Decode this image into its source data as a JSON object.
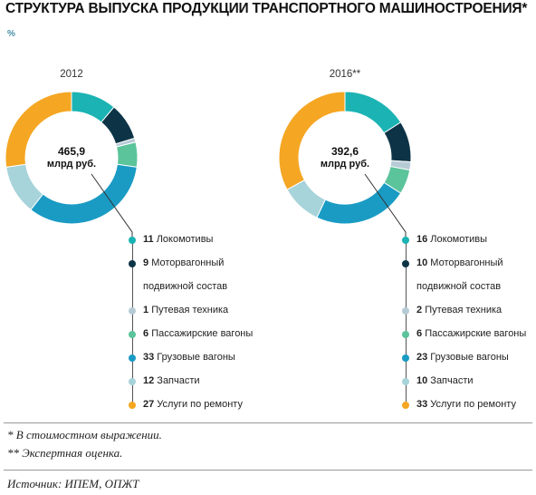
{
  "title": "СТРУКТУРА ВЫПУСКА ПРОДУКЦИИ ТРАНСПОРТНОГО МАШИНОСТРОЕНИЯ*",
  "unit": "%",
  "footnotes": [
    "* В стоимостном выражении.",
    "** Экспертная оценка."
  ],
  "source": "Источник: ИПЕМ, ОПЖТ",
  "colors": {
    "locomotives": "#1bb3b3",
    "motor_cars": "#0d3446",
    "track": "#b7cbd6",
    "passenger": "#5bc49a",
    "freight": "#1a9bc4",
    "parts": "#a7d3da",
    "repair": "#f5a623"
  },
  "chart_data": [
    {
      "type": "pie",
      "title": "2012",
      "center_value": "465,9",
      "center_unit": "млрд руб.",
      "slices": [
        {
          "label": "Локомотивы",
          "value": 11,
          "color": "#1bb3b3"
        },
        {
          "label": "Моторвагонный подвижной состав",
          "label_lines": [
            "Моторвагонный",
            "подвижной состав"
          ],
          "value": 9,
          "color": "#0d3446"
        },
        {
          "label": "Путевая техника",
          "value": 1,
          "color": "#b7cbd6"
        },
        {
          "label": "Пассажирские вагоны",
          "value": 6,
          "color": "#5bc49a"
        },
        {
          "label": "Грузовые вагоны",
          "value": 33,
          "color": "#1a9bc4"
        },
        {
          "label": "Запчасти",
          "value": 12,
          "color": "#a7d3da"
        },
        {
          "label": "Услуги по ремонту",
          "value": 27,
          "color": "#f5a623"
        }
      ]
    },
    {
      "type": "pie",
      "title": "2016**",
      "center_value": "392,6",
      "center_unit": "млрд руб.",
      "slices": [
        {
          "label": "Локомотивы",
          "value": 16,
          "color": "#1bb3b3"
        },
        {
          "label": "Моторвагонный подвижной состав",
          "label_lines": [
            "Моторвагонный",
            "подвижной состав"
          ],
          "value": 10,
          "color": "#0d3446"
        },
        {
          "label": "Путевая техника",
          "value": 2,
          "color": "#b7cbd6"
        },
        {
          "label": "Пассажирские вагоны",
          "value": 6,
          "color": "#5bc49a"
        },
        {
          "label": "Грузовые вагоны",
          "value": 23,
          "color": "#1a9bc4"
        },
        {
          "label": "Запчасти",
          "value": 10,
          "color": "#a7d3da"
        },
        {
          "label": "Услуги по ремонту",
          "value": 33,
          "color": "#f5a623"
        }
      ]
    }
  ]
}
